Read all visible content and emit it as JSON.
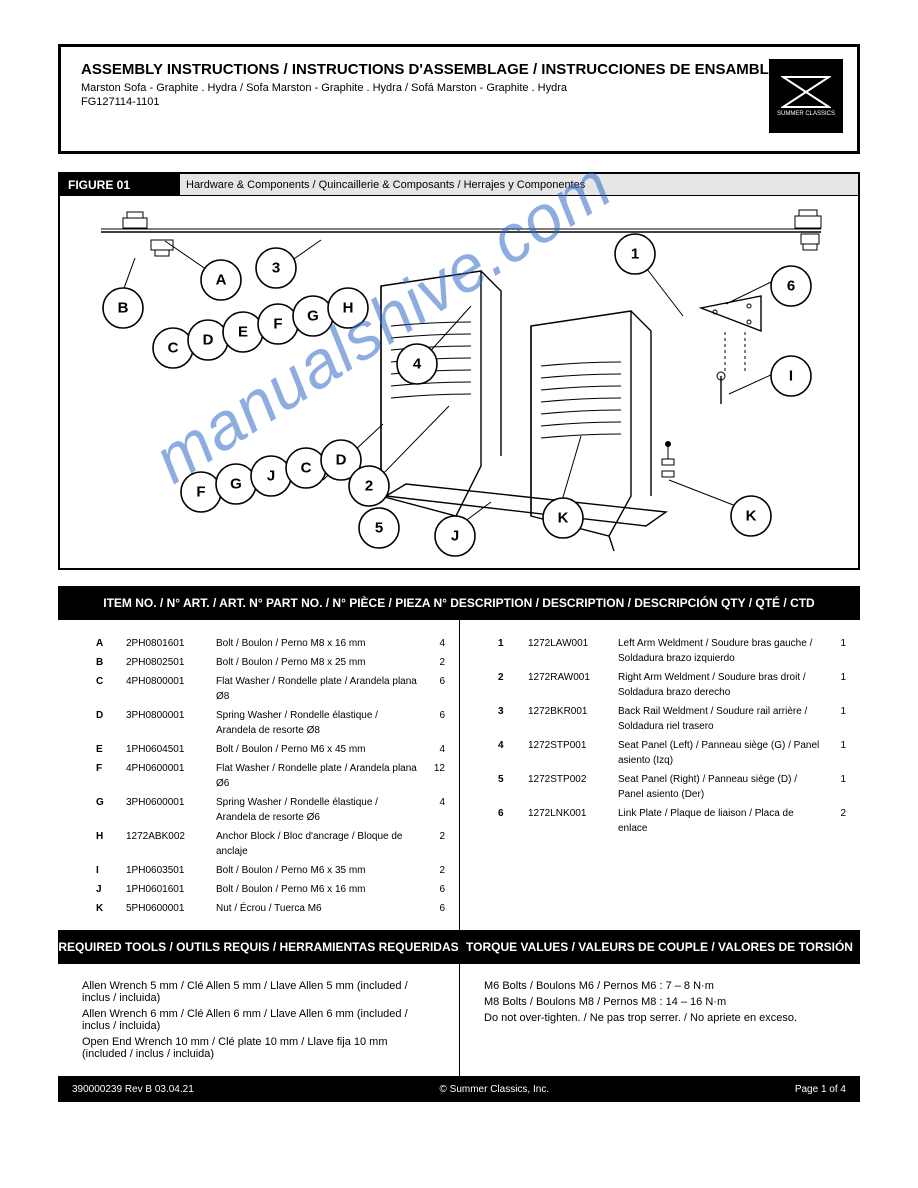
{
  "header": {
    "title": "ASSEMBLY INSTRUCTIONS / INSTRUCTIONS D'ASSEMBLAGE / INSTRUCCIONES DE ENSAMBLAJE",
    "sub1": "Marston Sofa - Graphite . Hydra / Sofa Marston - Graphite . Hydra / Sofá Marston - Graphite . Hydra",
    "sub2": "FG127114-1101",
    "logo_text": "SUMMER CLASSICS"
  },
  "figure": {
    "label": "FIGURE 01",
    "caption": "Hardware & Components / Quincaillerie & Composants / Herrajes y Componentes",
    "parts": [
      "A",
      "B",
      "C",
      "D",
      "E",
      "F",
      "G",
      "H",
      "I",
      "J",
      "K",
      "1",
      "2",
      "3",
      "4",
      "5",
      "6"
    ]
  },
  "listbar": {
    "left": "ITEM NO. / N° ART. / ART. N°     PART NO. / N° PIÈCE / PIEZA N°     DESCRIPTION / DESCRIPTION / DESCRIPCIÓN     QTY / QTÉ / CTD",
    "right": "ITEM NO. / N° ART. / ART. N°     PART NO. / N° PIÈCE / PIEZA N°     DESCRIPTION / DESCRIPTION / DESCRIPCIÓN     QTY / QTÉ / CTD"
  },
  "items_left": [
    {
      "no": "A",
      "pn": "2PH0801601",
      "desc": "Bolt / Boulon / Perno  M8 x 16 mm",
      "qty": "4"
    },
    {
      "no": "B",
      "pn": "2PH0802501",
      "desc": "Bolt / Boulon / Perno  M8 x 25 mm",
      "qty": "2"
    },
    {
      "no": "C",
      "pn": "4PH0800001",
      "desc": "Flat Washer / Rondelle plate / Arandela plana  Ø8",
      "qty": "6"
    },
    {
      "no": "D",
      "pn": "3PH0800001",
      "desc": "Spring Washer / Rondelle élastique / Arandela de resorte  Ø8",
      "qty": "6"
    },
    {
      "no": "E",
      "pn": "1PH0604501",
      "desc": "Bolt / Boulon / Perno  M6 x 45 mm",
      "qty": "4"
    },
    {
      "no": "F",
      "pn": "4PH0600001",
      "desc": "Flat Washer / Rondelle plate / Arandela plana  Ø6",
      "qty": "12"
    },
    {
      "no": "G",
      "pn": "3PH0600001",
      "desc": "Spring Washer / Rondelle élastique / Arandela de resorte  Ø6",
      "qty": "4"
    },
    {
      "no": "H",
      "pn": "1272ABK002",
      "desc": "Anchor Block / Bloc d'ancrage / Bloque de anclaje",
      "qty": "2"
    },
    {
      "no": "I",
      "pn": "1PH0603501",
      "desc": "Bolt / Boulon / Perno  M6 x 35 mm",
      "qty": "2"
    },
    {
      "no": "J",
      "pn": "1PH0601601",
      "desc": "Bolt / Boulon / Perno  M6 x 16 mm",
      "qty": "6"
    },
    {
      "no": "K",
      "pn": "5PH0600001",
      "desc": "Nut / Écrou / Tuerca  M6",
      "qty": "6"
    }
  ],
  "items_right": [
    {
      "no": "1",
      "pn": "1272LAW001",
      "desc": "Left Arm Weldment / Soudure bras gauche / Soldadura brazo izquierdo",
      "qty": "1"
    },
    {
      "no": "2",
      "pn": "1272RAW001",
      "desc": "Right Arm Weldment / Soudure bras droit / Soldadura brazo derecho",
      "qty": "1"
    },
    {
      "no": "3",
      "pn": "1272BKR001",
      "desc": "Back Rail Weldment / Soudure rail arrière / Soldadura riel trasero",
      "qty": "1"
    },
    {
      "no": "4",
      "pn": "1272STP001",
      "desc": "Seat Panel (Left) / Panneau siège (G) / Panel asiento (Izq)",
      "qty": "1"
    },
    {
      "no": "5",
      "pn": "1272STP002",
      "desc": "Seat Panel (Right) / Panneau siège (D) / Panel asiento (Der)",
      "qty": "1"
    },
    {
      "no": "6",
      "pn": "1272LNK001",
      "desc": "Link Plate / Plaque de liaison / Placa de enlace",
      "qty": "2"
    }
  ],
  "reqbar": {
    "left": "REQUIRED TOOLS / OUTILS REQUIS / HERRAMIENTAS REQUERIDAS",
    "right": "TORQUE VALUES / VALEURS DE COUPLE / VALORES DE TORSIÓN"
  },
  "tools": [
    "Allen Wrench 5 mm / Clé Allen 5 mm / Llave Allen 5 mm  (included / inclus / incluida)",
    "Allen Wrench 6 mm / Clé Allen 6 mm / Llave Allen 6 mm  (included / inclus / incluida)",
    "Open End Wrench 10 mm / Clé plate 10 mm / Llave fija 10 mm  (included / inclus / incluida)"
  ],
  "torque": [
    "M6 Bolts / Boulons M6 / Pernos M6 :  7 – 8 N·m",
    "M8 Bolts / Boulons M8 / Pernos M8 :  14 – 16 N·m",
    "Do not over-tighten. / Ne pas trop serrer. / No apriete en exceso."
  ],
  "footer": {
    "left": "390000239  Rev B  03.04.21",
    "center": "© Summer Classics, Inc.",
    "right": "Page 1 of 4"
  }
}
